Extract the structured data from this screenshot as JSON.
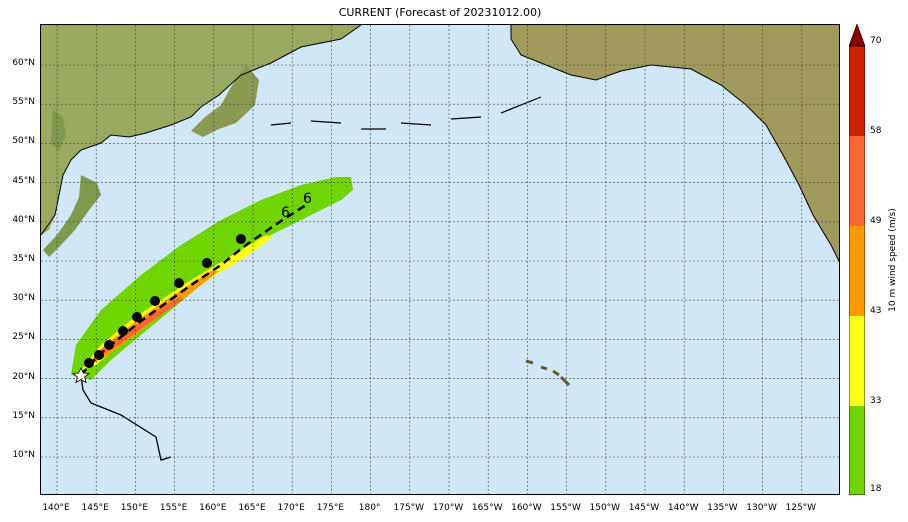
{
  "title": "CURRENT (Forecast of 20231012.00)",
  "lat_labels": [
    "60°N",
    "55°N",
    "50°N",
    "45°N",
    "40°N",
    "35°N",
    "30°N",
    "25°N",
    "20°N",
    "15°N",
    "10°N"
  ],
  "lon_labels": [
    "140°E",
    "145°E",
    "150°E",
    "155°E",
    "160°E",
    "165°E",
    "170°E",
    "175°E",
    "180°",
    "175°W",
    "170°W",
    "165°W",
    "160°W",
    "155°W",
    "150°W",
    "145°W",
    "140°W",
    "135°W",
    "130°W",
    "125°W"
  ],
  "colorbar": {
    "label": "10 m wind speed (m/s)",
    "ticks": [
      "18",
      "33",
      "43",
      "49",
      "58",
      "70"
    ],
    "colors": [
      "#6fd400",
      "#ffff1a",
      "#ff9900",
      "#ff6633",
      "#cc2200",
      "#8b0000"
    ]
  },
  "colors": {
    "ocean": "#cfe7f6",
    "land": "#8ea85c",
    "track": "#000000"
  }
}
